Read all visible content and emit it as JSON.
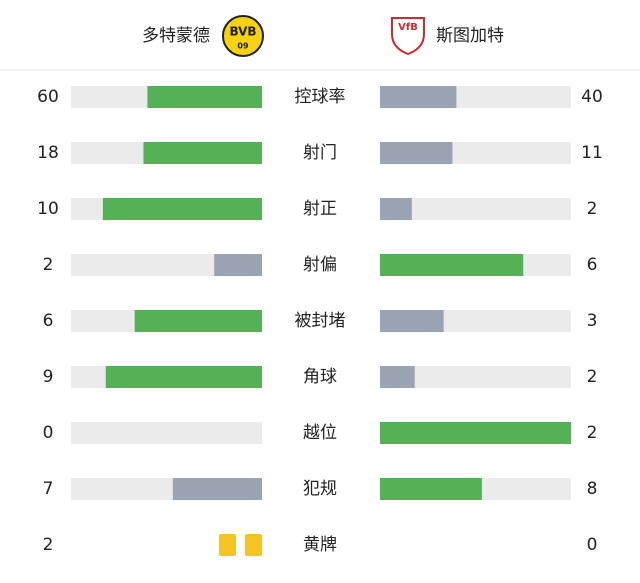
{
  "home": {
    "name": "多特蒙德",
    "logo_text": "BVB",
    "logo_year": "09"
  },
  "away": {
    "name": "斯图加特",
    "logo_text": "VfB"
  },
  "stats": [
    {
      "label": "控球率",
      "home": 60,
      "away": 40
    },
    {
      "label": "射门",
      "home": 18,
      "away": 11
    },
    {
      "label": "射正",
      "home": 10,
      "away": 2
    },
    {
      "label": "射偏",
      "home": 2,
      "away": 6
    },
    {
      "label": "被封堵",
      "home": 6,
      "away": 3
    },
    {
      "label": "角球",
      "home": 9,
      "away": 2
    },
    {
      "label": "越位",
      "home": 0,
      "away": 2
    },
    {
      "label": "犯规",
      "home": 7,
      "away": 8
    }
  ],
  "yellow_cards": {
    "label": "黄牌",
    "home": 2,
    "away": 0
  }
}
